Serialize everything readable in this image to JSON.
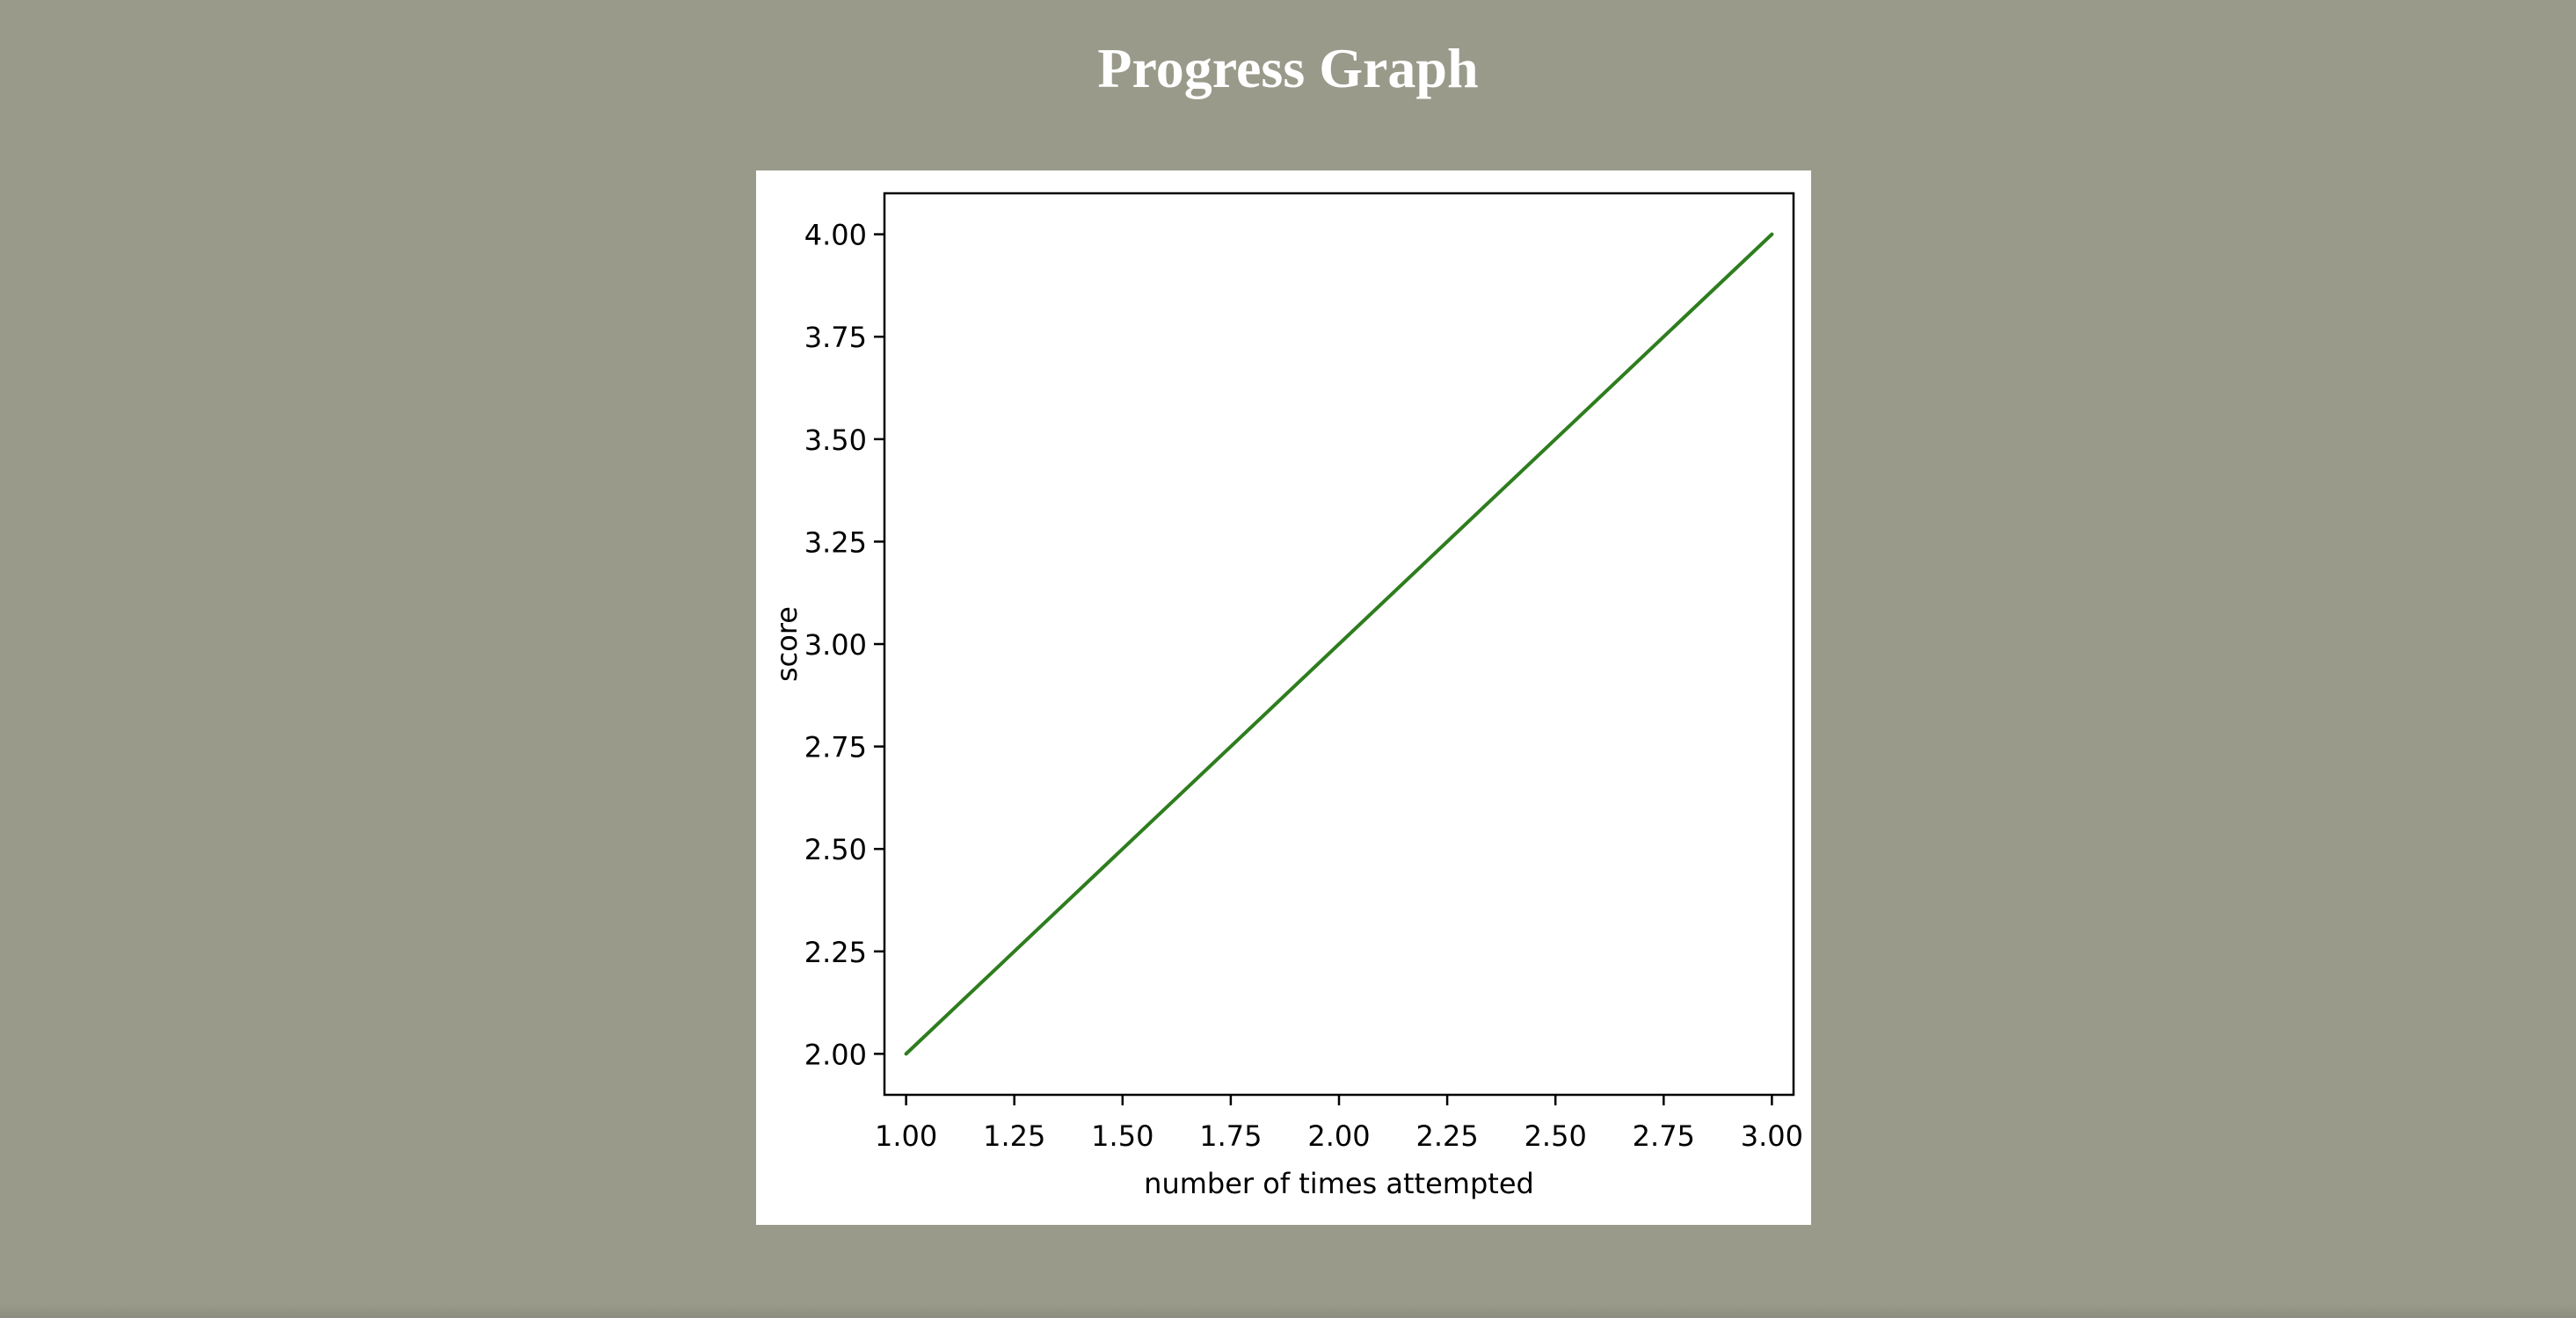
{
  "page": {
    "title": "Progress Graph",
    "background_color": "#999a8a",
    "title_color": "#ffffff"
  },
  "chart_data": {
    "type": "line",
    "title": "",
    "xlabel": "number of times attempted",
    "ylabel": "score",
    "x": [
      1,
      2,
      3
    ],
    "series": [
      {
        "values": [
          2,
          3,
          4
        ],
        "color": "#2e7d1e"
      }
    ],
    "xlim": [
      0.95,
      3.05
    ],
    "ylim": [
      1.9,
      4.1
    ],
    "xticks": [
      1.0,
      1.25,
      1.5,
      1.75,
      2.0,
      2.25,
      2.5,
      2.75,
      3.0
    ],
    "xtick_labels": [
      "1.00",
      "1.25",
      "1.50",
      "1.75",
      "2.00",
      "2.25",
      "2.50",
      "2.75",
      "3.00"
    ],
    "yticks": [
      2.0,
      2.25,
      2.5,
      2.75,
      3.0,
      3.25,
      3.5,
      3.75,
      4.0
    ],
    "ytick_labels": [
      "2.00",
      "2.25",
      "2.50",
      "2.75",
      "3.00",
      "3.25",
      "3.50",
      "3.75",
      "4.00"
    ],
    "grid": false,
    "legend": "none"
  }
}
